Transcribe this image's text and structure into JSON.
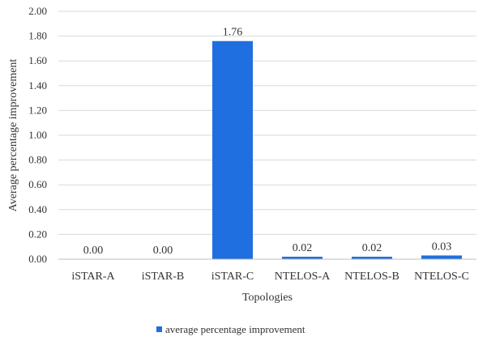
{
  "chart_data": {
    "type": "bar",
    "categories": [
      "iSTAR-A",
      "iSTAR-B",
      "iSTAR-C",
      "NTELOS-A",
      "NTELOS-B",
      "NTELOS-C"
    ],
    "series": [
      {
        "name": "average percentage improvement",
        "values": [
          0.0,
          0.0,
          1.76,
          0.02,
          0.02,
          0.03
        ],
        "labels": [
          "0.00",
          "0.00",
          "1.76",
          "0.02",
          "0.02",
          "0.03"
        ],
        "color": "#1f6fe0"
      }
    ],
    "xlabel": "Topologies",
    "ylabel": "Average percentage improvement",
    "ylim": [
      0,
      2.0
    ],
    "yticks": [
      "0.00",
      "0.20",
      "0.40",
      "0.60",
      "0.80",
      "1.00",
      "1.20",
      "1.40",
      "1.60",
      "1.80",
      "2.00"
    ],
    "grid": true,
    "legend_position": "bottom"
  }
}
